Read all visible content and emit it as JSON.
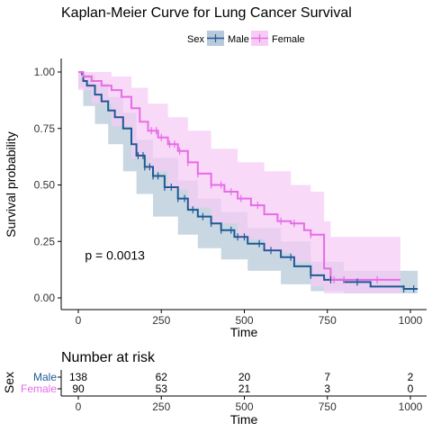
{
  "chart_data": {
    "type": "line",
    "title": "Kaplan-Meier Curve for Lung Cancer Survival",
    "xlabel": "Time",
    "ylabel": "Survival probability",
    "xlim": [
      0,
      1040
    ],
    "ylim": [
      -0.05,
      1.05
    ],
    "x_ticks": [
      "0",
      "250",
      "500",
      "750",
      "1000"
    ],
    "y_ticks": [
      "0.00",
      "0.25",
      "0.50",
      "0.75",
      "1.00"
    ],
    "x_tick_values": [
      0,
      250,
      500,
      750,
      1000
    ],
    "y_tick_values": [
      0,
      0.25,
      0.5,
      0.75,
      1.0
    ],
    "legend": {
      "title": "Sex",
      "position": "top"
    },
    "annotation": "p = 0.0013",
    "annotation_pos": {
      "x": 20,
      "y": 0.19
    },
    "grid": false,
    "series": [
      {
        "name": "Male",
        "color": "#1f5a94",
        "band_color": "#b7c9da",
        "points": [
          [
            0,
            1.0
          ],
          [
            11,
            0.99
          ],
          [
            15,
            0.96
          ],
          [
            26,
            0.94
          ],
          [
            50,
            0.9
          ],
          [
            70,
            0.87
          ],
          [
            90,
            0.83
          ],
          [
            110,
            0.8
          ],
          [
            135,
            0.75
          ],
          [
            160,
            0.68
          ],
          [
            175,
            0.63
          ],
          [
            200,
            0.58
          ],
          [
            225,
            0.54
          ],
          [
            260,
            0.49
          ],
          [
            300,
            0.44
          ],
          [
            330,
            0.39
          ],
          [
            360,
            0.36
          ],
          [
            400,
            0.33
          ],
          [
            430,
            0.3
          ],
          [
            470,
            0.27
          ],
          [
            510,
            0.24
          ],
          [
            560,
            0.21
          ],
          [
            610,
            0.18
          ],
          [
            650,
            0.14
          ],
          [
            700,
            0.1
          ],
          [
            740,
            0.08
          ],
          [
            800,
            0.07
          ],
          [
            880,
            0.05
          ],
          [
            980,
            0.04
          ],
          [
            1022,
            0.04
          ]
        ],
        "band": [
          [
            0,
            1.0,
            1.0
          ],
          [
            15,
            0.99,
            0.93
          ],
          [
            50,
            0.95,
            0.85
          ],
          [
            90,
            0.89,
            0.77
          ],
          [
            135,
            0.82,
            0.68
          ],
          [
            175,
            0.7,
            0.56
          ],
          [
            225,
            0.62,
            0.46
          ],
          [
            300,
            0.52,
            0.36
          ],
          [
            360,
            0.44,
            0.28
          ],
          [
            430,
            0.38,
            0.22
          ],
          [
            510,
            0.31,
            0.17
          ],
          [
            610,
            0.25,
            0.12
          ],
          [
            700,
            0.16,
            0.06
          ],
          [
            800,
            0.12,
            0.03
          ],
          [
            1022,
            0.12,
            0.02
          ]
        ],
        "censor_x": [
          180,
          195,
          200,
          215,
          225,
          240,
          260,
          280,
          300,
          320,
          345,
          375,
          400,
          430,
          460,
          480,
          500,
          545,
          580,
          640,
          700,
          760,
          840,
          980,
          1010
        ]
      },
      {
        "name": "Female",
        "color": "#e76be7",
        "band_color": "#f6ccf6",
        "points": [
          [
            0,
            1.0
          ],
          [
            15,
            0.98
          ],
          [
            40,
            0.96
          ],
          [
            70,
            0.94
          ],
          [
            100,
            0.92
          ],
          [
            130,
            0.89
          ],
          [
            160,
            0.84
          ],
          [
            185,
            0.78
          ],
          [
            210,
            0.74
          ],
          [
            240,
            0.71
          ],
          [
            270,
            0.68
          ],
          [
            300,
            0.65
          ],
          [
            330,
            0.6
          ],
          [
            360,
            0.55
          ],
          [
            400,
            0.5
          ],
          [
            440,
            0.47
          ],
          [
            480,
            0.44
          ],
          [
            520,
            0.41
          ],
          [
            560,
            0.37
          ],
          [
            600,
            0.34
          ],
          [
            640,
            0.33
          ],
          [
            680,
            0.3
          ],
          [
            700,
            0.28
          ],
          [
            740,
            0.13
          ],
          [
            760,
            0.08
          ],
          [
            970,
            0.08
          ]
        ],
        "band": [
          [
            0,
            1.0,
            1.0
          ],
          [
            40,
            1.0,
            0.92
          ],
          [
            100,
            0.98,
            0.86
          ],
          [
            160,
            0.93,
            0.76
          ],
          [
            210,
            0.86,
            0.62
          ],
          [
            270,
            0.8,
            0.56
          ],
          [
            330,
            0.74,
            0.48
          ],
          [
            400,
            0.66,
            0.4
          ],
          [
            480,
            0.6,
            0.33
          ],
          [
            560,
            0.56,
            0.26
          ],
          [
            640,
            0.5,
            0.2
          ],
          [
            700,
            0.47,
            0.16
          ],
          [
            740,
            0.34,
            0.05
          ],
          [
            760,
            0.27,
            0.02
          ],
          [
            970,
            0.27,
            0.02
          ]
        ],
        "censor_x": [
          220,
          235,
          250,
          275,
          290,
          305,
          330,
          360,
          400,
          430,
          460,
          490,
          540,
          610,
          650,
          700,
          770,
          800,
          900
        ]
      }
    ]
  },
  "risk_table": {
    "title": "Number at risk",
    "strata_axis_label": "Sex",
    "xlabel": "Time",
    "x_ticks": [
      "0",
      "250",
      "500",
      "750",
      "1000"
    ],
    "rows": [
      {
        "name": "Male",
        "color": "#1f5a94",
        "values": [
          "138",
          "62",
          "20",
          "7",
          "2"
        ]
      },
      {
        "name": "Female",
        "color": "#e76be7",
        "values": [
          "90",
          "53",
          "21",
          "3",
          "0"
        ]
      }
    ]
  }
}
